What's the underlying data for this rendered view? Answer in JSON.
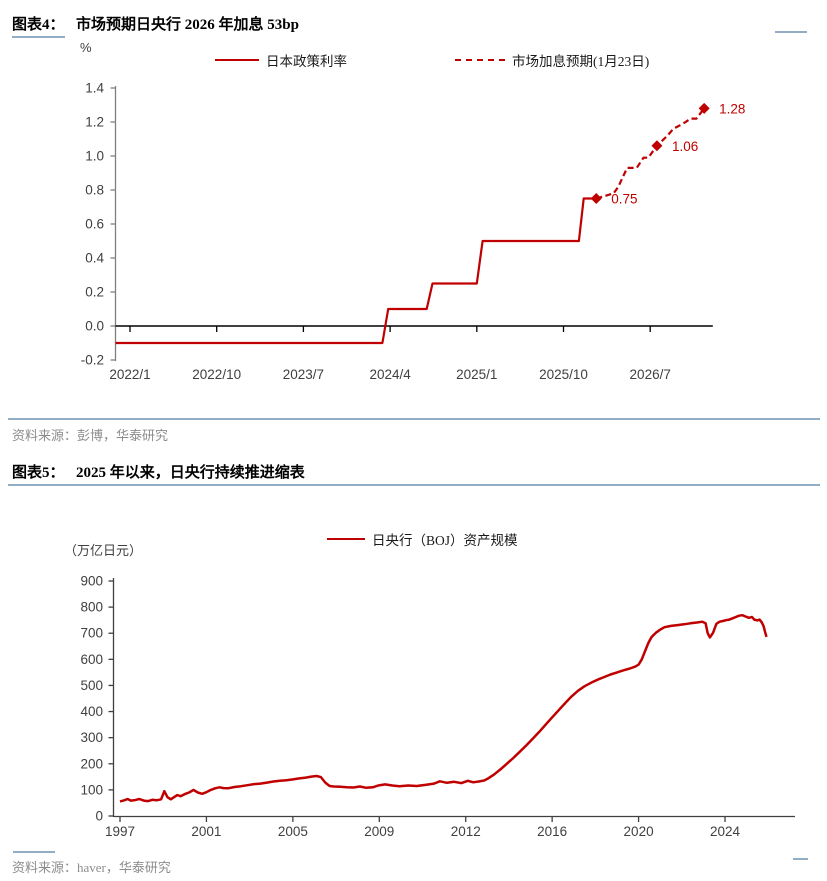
{
  "figure4": {
    "label": "图表4：",
    "title": "市场预期日央行 2026 年加息 53bp",
    "unit": "%",
    "legend": [
      {
        "name": "日本政策利率",
        "style": "solid"
      },
      {
        "name": "市场加息预期(1月23日)",
        "style": "dashed"
      }
    ],
    "source": "资料来源：彭博，华泰研究"
  },
  "figure5": {
    "label": "图表5：",
    "title": "2025 年以来，日央行持续推进缩表",
    "unit": "（万亿日元）",
    "legend": [
      {
        "name": "日央行（BOJ）资产规模",
        "style": "solid"
      }
    ],
    "source": "资料来源：haver，华泰研究"
  },
  "colors": {
    "series_red": "#c00000",
    "axis_gray": "#7f7f7f",
    "axis_dark": "#404040",
    "zero_line": "#000000",
    "tick_text": "#404040",
    "divider_blue": "#93adc4",
    "source_gray": "#8c8c8c"
  },
  "chart_data": [
    {
      "type": "line",
      "title": "市场预期日央行 2026 年加息 53bp",
      "ylabel": "%",
      "ylim": [
        -0.2,
        1.4
      ],
      "yticks": [
        "1.4",
        "1.2",
        "1.0",
        "0.8",
        "0.6",
        "0.4",
        "0.2",
        "0.0",
        "-0.2"
      ],
      "ytick_values": [
        1.4,
        1.2,
        1.0,
        0.8,
        0.6,
        0.4,
        0.2,
        0.0,
        -0.2
      ],
      "x_unit": "months since 2022/1",
      "xlim": [
        -1.5,
        60.5
      ],
      "xticks": [
        {
          "m": 0,
          "label": "2022/1"
        },
        {
          "m": 9,
          "label": "2022/10"
        },
        {
          "m": 18,
          "label": "2023/7"
        },
        {
          "m": 27,
          "label": "2024/4"
        },
        {
          "m": 36,
          "label": "2025/1"
        },
        {
          "m": 45,
          "label": "2025/10"
        },
        {
          "m": 54,
          "label": "2026/7"
        }
      ],
      "legend_position": "top",
      "grid": false,
      "series": [
        {
          "name": "日本政策利率",
          "style": "solid",
          "points": [
            [
              -1.5,
              -0.1
            ],
            [
              26.2,
              -0.1
            ],
            [
              26.8,
              0.1
            ],
            [
              30.8,
              0.1
            ],
            [
              31.4,
              0.25
            ],
            [
              36.0,
              0.25
            ],
            [
              36.6,
              0.5
            ],
            [
              46.6,
              0.5
            ],
            [
              47.1,
              0.75
            ],
            [
              48.4,
              0.75
            ]
          ]
        },
        {
          "name": "市场加息预期(1月23日)",
          "style": "dashed",
          "points": [
            [
              48.4,
              0.75
            ],
            [
              50.2,
              0.78
            ],
            [
              50.7,
              0.82
            ],
            [
              51.6,
              0.93
            ],
            [
              52.6,
              0.93
            ],
            [
              53.3,
              0.99
            ],
            [
              53.8,
              0.99
            ],
            [
              54.7,
              1.06
            ],
            [
              55.8,
              1.12
            ],
            [
              56.4,
              1.16
            ],
            [
              57.4,
              1.19
            ],
            [
              58.2,
              1.22
            ],
            [
              58.8,
              1.22
            ],
            [
              59.6,
              1.28
            ]
          ],
          "markers": [
            {
              "m": 48.4,
              "v": 0.75,
              "label": "0.75"
            },
            {
              "m": 54.7,
              "v": 1.06,
              "label": "1.06"
            },
            {
              "m": 59.6,
              "v": 1.28,
              "label": "1.28"
            }
          ]
        }
      ]
    },
    {
      "type": "line",
      "title": "2025 年以来，日央行持续推进缩表",
      "ylabel": "（万亿日元）",
      "ylim": [
        0,
        900
      ],
      "yticks": [
        "900",
        "800",
        "700",
        "600",
        "500",
        "400",
        "300",
        "200",
        "100",
        "0"
      ],
      "ytick_values": [
        900,
        800,
        700,
        600,
        500,
        400,
        300,
        200,
        100,
        0
      ],
      "x_unit": "year",
      "xticks": [
        "1997",
        "2001",
        "2005",
        "2009",
        "2012",
        "2016",
        "2020",
        "2024"
      ],
      "xtick_years": [
        1997,
        2001,
        2005,
        2009,
        2012,
        2016,
        2020,
        2024
      ],
      "legend_position": "top",
      "grid": false,
      "series": [
        {
          "name": "日央行（BOJ）资产规模",
          "style": "solid",
          "points": [
            [
              1997.0,
              56
            ],
            [
              1997.2,
              60
            ],
            [
              1997.35,
              65
            ],
            [
              1997.5,
              59
            ],
            [
              1997.7,
              61
            ],
            [
              1997.9,
              65
            ],
            [
              1998.1,
              59
            ],
            [
              1998.3,
              57
            ],
            [
              1998.5,
              62
            ],
            [
              1998.7,
              60
            ],
            [
              1998.9,
              64
            ],
            [
              1999.05,
              95
            ],
            [
              1999.2,
              72
            ],
            [
              1999.35,
              64
            ],
            [
              1999.5,
              72
            ],
            [
              1999.65,
              80
            ],
            [
              1999.8,
              76
            ],
            [
              2000.0,
              84
            ],
            [
              2000.2,
              90
            ],
            [
              2000.4,
              100
            ],
            [
              2000.6,
              90
            ],
            [
              2000.8,
              85
            ],
            [
              2001.0,
              91
            ],
            [
              2001.2,
              100
            ],
            [
              2001.4,
              106
            ],
            [
              2001.6,
              110
            ],
            [
              2001.8,
              107
            ],
            [
              2002.0,
              106
            ],
            [
              2002.3,
              111
            ],
            [
              2002.6,
              114
            ],
            [
              2002.9,
              118
            ],
            [
              2003.2,
              122
            ],
            [
              2003.5,
              124
            ],
            [
              2003.8,
              128
            ],
            [
              2004.1,
              132
            ],
            [
              2004.4,
              135
            ],
            [
              2004.7,
              137
            ],
            [
              2005.0,
              140
            ],
            [
              2005.3,
              144
            ],
            [
              2005.6,
              147
            ],
            [
              2005.85,
              151
            ],
            [
              2006.1,
              153
            ],
            [
              2006.3,
              149
            ],
            [
              2006.5,
              128
            ],
            [
              2006.7,
              115
            ],
            [
              2006.9,
              113
            ],
            [
              2007.2,
              112
            ],
            [
              2007.5,
              110
            ],
            [
              2007.8,
              109
            ],
            [
              2008.1,
              113
            ],
            [
              2008.4,
              108
            ],
            [
              2008.7,
              110
            ],
            [
              2008.95,
              117
            ],
            [
              2009.2,
              121
            ],
            [
              2009.45,
              117
            ],
            [
              2009.7,
              114
            ],
            [
              2010.0,
              117
            ],
            [
              2010.3,
              115
            ],
            [
              2010.6,
              119
            ],
            [
              2010.9,
              124
            ],
            [
              2011.1,
              133
            ],
            [
              2011.35,
              127
            ],
            [
              2011.6,
              131
            ],
            [
              2011.85,
              126
            ],
            [
              2012.1,
              135
            ],
            [
              2012.35,
              129
            ],
            [
              2012.6,
              132
            ],
            [
              2012.85,
              136
            ],
            [
              2013.0,
              142
            ],
            [
              2013.3,
              158
            ],
            [
              2013.6,
              178
            ],
            [
              2013.9,
              200
            ],
            [
              2014.2,
              222
            ],
            [
              2014.5,
              246
            ],
            [
              2014.8,
              270
            ],
            [
              2015.1,
              296
            ],
            [
              2015.4,
              322
            ],
            [
              2015.7,
              350
            ],
            [
              2016.0,
              378
            ],
            [
              2016.3,
              405
            ],
            [
              2016.6,
              432
            ],
            [
              2016.9,
              458
            ],
            [
              2017.2,
              480
            ],
            [
              2017.5,
              497
            ],
            [
              2017.8,
              510
            ],
            [
              2018.1,
              522
            ],
            [
              2018.4,
              532
            ],
            [
              2018.7,
              542
            ],
            [
              2019.0,
              550
            ],
            [
              2019.3,
              558
            ],
            [
              2019.6,
              565
            ],
            [
              2019.85,
              572
            ],
            [
              2020.0,
              580
            ],
            [
              2020.15,
              600
            ],
            [
              2020.3,
              632
            ],
            [
              2020.45,
              662
            ],
            [
              2020.6,
              685
            ],
            [
              2020.8,
              702
            ],
            [
              2021.0,
              714
            ],
            [
              2021.2,
              723
            ],
            [
              2021.5,
              728
            ],
            [
              2021.8,
              731
            ],
            [
              2022.1,
              734
            ],
            [
              2022.4,
              738
            ],
            [
              2022.7,
              741
            ],
            [
              2022.95,
              744
            ],
            [
              2023.1,
              738
            ],
            [
              2023.2,
              700
            ],
            [
              2023.3,
              684
            ],
            [
              2023.45,
              702
            ],
            [
              2023.6,
              736
            ],
            [
              2023.75,
              744
            ],
            [
              2023.9,
              747
            ],
            [
              2024.05,
              750
            ],
            [
              2024.2,
              752
            ],
            [
              2024.35,
              757
            ],
            [
              2024.5,
              762
            ],
            [
              2024.65,
              767
            ],
            [
              2024.8,
              769
            ],
            [
              2024.95,
              764
            ],
            [
              2025.1,
              759
            ],
            [
              2025.25,
              762
            ],
            [
              2025.35,
              752
            ],
            [
              2025.5,
              749
            ],
            [
              2025.6,
              752
            ],
            [
              2025.7,
              742
            ],
            [
              2025.78,
              728
            ],
            [
              2025.85,
              706
            ],
            [
              2025.92,
              686
            ]
          ]
        }
      ]
    }
  ]
}
